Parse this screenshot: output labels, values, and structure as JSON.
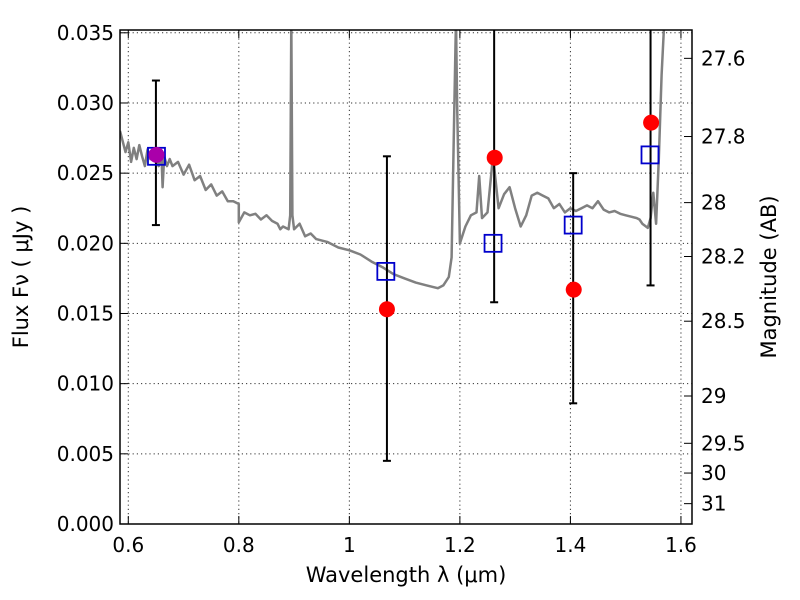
{
  "chart_data": {
    "type": "scatter",
    "xlabel": "Wavelength  λ (μm)",
    "ylabel": "Flux  Fν  ( μJy )",
    "ylabel_right": "Magnitude (AB)",
    "xlim": [
      0.585,
      1.62
    ],
    "ylim": [
      0.0,
      0.0352
    ],
    "grid": true,
    "x_ticks": [
      0.6,
      0.8,
      1.0,
      1.2,
      1.4,
      1.6
    ],
    "x_tick_labels": [
      "0.6",
      "0.8",
      "1",
      "1.2",
      "1.4",
      "1.6"
    ],
    "y_ticks": [
      0.0,
      0.005,
      0.01,
      0.015,
      0.02,
      0.025,
      0.03,
      0.035
    ],
    "y_tick_labels": [
      "0.000",
      "0.005",
      "0.010",
      "0.015",
      "0.020",
      "0.025",
      "0.030",
      "0.035"
    ],
    "right_ticks": [
      {
        "label": "27.6",
        "flux": 0.03318
      },
      {
        "label": "27.8",
        "flux": 0.02761
      },
      {
        "label": "28",
        "flux": 0.0229
      },
      {
        "label": "28.2",
        "flux": 0.01906
      },
      {
        "label": "28.5",
        "flux": 0.01445
      },
      {
        "label": "29",
        "flux": 0.00912
      },
      {
        "label": "29.5",
        "flux": 0.00575
      },
      {
        "label": "30",
        "flux": 0.00363
      },
      {
        "label": "31",
        "flux": 0.00145
      }
    ],
    "series": [
      {
        "kind": "line",
        "color": "#808080",
        "x": [
          0.585,
          0.595,
          0.6,
          0.605,
          0.61,
          0.615,
          0.62,
          0.625,
          0.63,
          0.635,
          0.64,
          0.645,
          0.65,
          0.655,
          0.66,
          0.662,
          0.665,
          0.67,
          0.675,
          0.68,
          0.69,
          0.7,
          0.71,
          0.72,
          0.73,
          0.74,
          0.75,
          0.76,
          0.77,
          0.78,
          0.79,
          0.8,
          0.8,
          0.81,
          0.82,
          0.83,
          0.84,
          0.85,
          0.86,
          0.87,
          0.875,
          0.88,
          0.89,
          0.893,
          0.895,
          0.897,
          0.9,
          0.91,
          0.92,
          0.93,
          0.94,
          0.96,
          0.98,
          1.0,
          1.02,
          1.04,
          1.06,
          1.08,
          1.1,
          1.12,
          1.14,
          1.16,
          1.17,
          1.18,
          1.185,
          1.19,
          1.193,
          1.195,
          1.2,
          1.21,
          1.22,
          1.23,
          1.235,
          1.24,
          1.25,
          1.26,
          1.27,
          1.28,
          1.29,
          1.3,
          1.31,
          1.32,
          1.33,
          1.34,
          1.35,
          1.36,
          1.37,
          1.38,
          1.39,
          1.4,
          1.41,
          1.42,
          1.43,
          1.44,
          1.45,
          1.46,
          1.47,
          1.48,
          1.49,
          1.5,
          1.51,
          1.52,
          1.525,
          1.53,
          1.54,
          1.545,
          1.55,
          1.555,
          1.56,
          1.565,
          1.57,
          1.58,
          1.59,
          1.6
        ],
        "y": [
          0.028,
          0.0265,
          0.0272,
          0.0258,
          0.0268,
          0.026,
          0.027,
          0.0262,
          0.0255,
          0.0267,
          0.026,
          0.0264,
          0.026,
          0.0255,
          0.0264,
          0.024,
          0.0262,
          0.0255,
          0.026,
          0.0255,
          0.0258,
          0.0249,
          0.0256,
          0.0245,
          0.0248,
          0.0238,
          0.0242,
          0.0234,
          0.0237,
          0.023,
          0.023,
          0.0228,
          0.0215,
          0.0222,
          0.022,
          0.0221,
          0.0217,
          0.022,
          0.0216,
          0.0214,
          0.021,
          0.0212,
          0.021,
          0.022,
          0.036,
          0.022,
          0.021,
          0.0214,
          0.0205,
          0.0207,
          0.0203,
          0.0201,
          0.0197,
          0.0195,
          0.0192,
          0.0187,
          0.0183,
          0.0178,
          0.0175,
          0.0172,
          0.017,
          0.0168,
          0.017,
          0.0176,
          0.019,
          0.03,
          0.036,
          0.03,
          0.02,
          0.0212,
          0.022,
          0.0222,
          0.0248,
          0.0218,
          0.0222,
          0.0262,
          0.0225,
          0.0235,
          0.024,
          0.0225,
          0.0212,
          0.022,
          0.0234,
          0.0236,
          0.0234,
          0.0232,
          0.0225,
          0.0228,
          0.0222,
          0.0225,
          0.0223,
          0.0225,
          0.0227,
          0.0225,
          0.023,
          0.0224,
          0.0222,
          0.0223,
          0.0221,
          0.022,
          0.0219,
          0.0218,
          0.0217,
          0.0214,
          0.0211,
          0.0218,
          0.0236,
          0.0214,
          0.026,
          0.032,
          0.036,
          0.036,
          0.036,
          0.036
        ]
      },
      {
        "kind": "errorbar",
        "color": "#000000",
        "x": [
          0.65,
          1.068,
          1.262,
          1.405,
          1.545
        ],
        "low": [
          0.0213,
          0.0045,
          0.0158,
          0.0086,
          0.017
        ],
        "high": [
          0.0316,
          0.0262,
          0.0355,
          0.025,
          0.0355
        ],
        "capped_top": [
          true,
          true,
          false,
          true,
          false
        ]
      },
      {
        "kind": "squares",
        "color": "#0000cc",
        "x": [
          0.651,
          1.066,
          1.26,
          1.405,
          1.544
        ],
        "y": [
          0.0262,
          0.018,
          0.02,
          0.0213,
          0.0263
        ]
      },
      {
        "kind": "circles",
        "color": "#ff0000",
        "overlap_color": "#aa00aa",
        "x": [
          0.651,
          1.068,
          1.263,
          1.406,
          1.546
        ],
        "y": [
          0.0263,
          0.0153,
          0.0261,
          0.0167,
          0.0286
        ]
      }
    ]
  }
}
